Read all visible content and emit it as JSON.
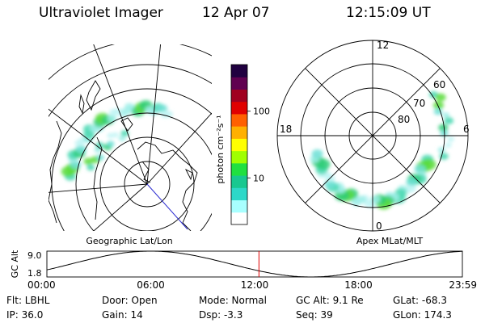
{
  "header": {
    "title": "Ultraviolet Imager",
    "date": "12 Apr 07",
    "time": "12:15:09 UT"
  },
  "geographic_map": {
    "label": "Geographic Lat/Lon"
  },
  "colorbar": {
    "unit_label": "photon cm⁻²s⁻¹",
    "ticks": [
      {
        "label": "100",
        "value": 100
      },
      {
        "label": "10",
        "value": 10
      }
    ],
    "colors": [
      "#ffffff",
      "#a8ffff",
      "#2dd8c8",
      "#18c890",
      "#20e040",
      "#a0ff00",
      "#ffff00",
      "#ffb000",
      "#ff6000",
      "#e00000",
      "#a00020",
      "#600050",
      "#200040"
    ]
  },
  "polar_plot": {
    "label": "Apex MLat/MLT",
    "mlt_labels": {
      "top": "12",
      "right": "6",
      "bottom": "0",
      "left": "18"
    },
    "lat_labels": [
      "60",
      "70",
      "80"
    ]
  },
  "altitude_strip": {
    "ylabel": "GC Alt",
    "yticks": [
      "9.0",
      "1.8"
    ],
    "xticks": [
      "00:00",
      "06:00",
      "12:00",
      "18:00",
      "23:59"
    ],
    "current_marker_hour": 12.25,
    "marker_color": "#e00000"
  },
  "info": {
    "row1": [
      {
        "key": "flt",
        "text": "Flt: LBHL"
      },
      {
        "key": "door",
        "text": "Door: Open"
      },
      {
        "key": "mode",
        "text": "Mode:  Normal"
      },
      {
        "key": "gcalt",
        "text": "GC Alt: 9.1 Re"
      },
      {
        "key": "glat",
        "text": "GLat:  -68.3"
      }
    ],
    "row2": [
      {
        "key": "ip",
        "text": "IP: 36.0"
      },
      {
        "key": "gain",
        "text": "Gain: 14"
      },
      {
        "key": "dsp",
        "text": "Dsp:      -3.3"
      },
      {
        "key": "seq",
        "text": "Seq: 39"
      },
      {
        "key": "glon",
        "text": "GLon: 174.3"
      }
    ]
  }
}
